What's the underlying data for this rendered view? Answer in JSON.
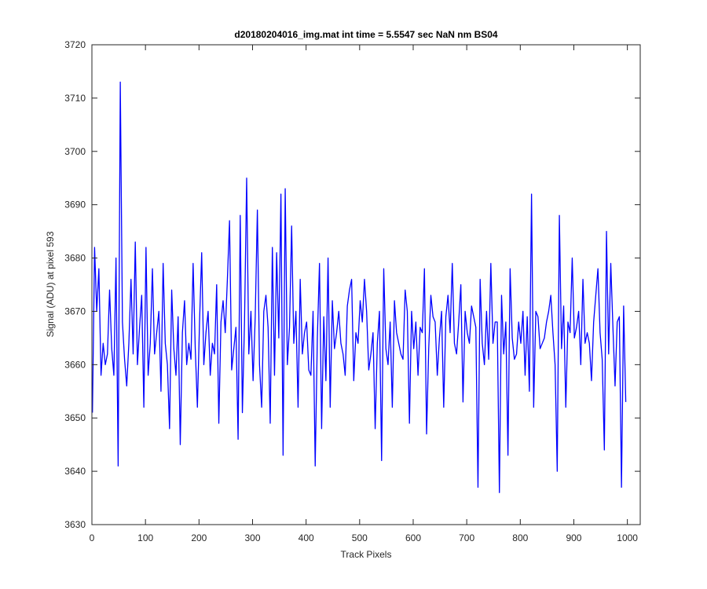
{
  "chart_data": {
    "type": "line",
    "title": "d20180204016_img.mat int time = 5.5547 sec  NaN nm BS04",
    "xlabel": "Track Pixels",
    "ylabel": "Signal (ADU) at pixel 593",
    "xlim": [
      0,
      1024
    ],
    "ylim": [
      3630,
      3720
    ],
    "xticks": [
      0,
      100,
      200,
      300,
      400,
      500,
      600,
      700,
      800,
      900,
      1000
    ],
    "yticks": [
      3630,
      3640,
      3650,
      3660,
      3670,
      3680,
      3690,
      3700,
      3710,
      3720
    ],
    "grid": false,
    "line_color": "#0000ff",
    "series": [
      {
        "x_start": 1,
        "x_step": 4,
        "values": [
          3651,
          3682,
          3670,
          3678,
          3658,
          3664,
          3660,
          3662,
          3674,
          3663,
          3658,
          3680,
          3641,
          3713,
          3668,
          3661,
          3656,
          3664,
          3676,
          3662,
          3683,
          3660,
          3667,
          3673,
          3652,
          3682,
          3658,
          3664,
          3678,
          3662,
          3666,
          3670,
          3655,
          3679,
          3664,
          3660,
          3648,
          3674,
          3663,
          3658,
          3669,
          3645,
          3666,
          3672,
          3660,
          3664,
          3661,
          3679,
          3663,
          3652,
          3668,
          3681,
          3660,
          3666,
          3670,
          3658,
          3664,
          3662,
          3675,
          3649,
          3668,
          3672,
          3666,
          3676,
          3687,
          3659,
          3663,
          3667,
          3646,
          3688,
          3651,
          3668,
          3695,
          3662,
          3670,
          3657,
          3669,
          3689,
          3660,
          3652,
          3670,
          3673,
          3667,
          3649,
          3682,
          3658,
          3681,
          3665,
          3692,
          3643,
          3693,
          3660,
          3667,
          3686,
          3664,
          3670,
          3652,
          3676,
          3662,
          3666,
          3668,
          3659,
          3658,
          3670,
          3641,
          3665,
          3679,
          3648,
          3669,
          3657,
          3680,
          3652,
          3672,
          3663,
          3666,
          3670,
          3664,
          3662,
          3658,
          3671,
          3674,
          3676,
          3657,
          3666,
          3664,
          3672,
          3668,
          3676,
          3670,
          3659,
          3662,
          3666,
          3648,
          3664,
          3670,
          3642,
          3678,
          3663,
          3660,
          3668,
          3652,
          3672,
          3666,
          3664,
          3662,
          3661,
          3674,
          3670,
          3649,
          3670,
          3663,
          3668,
          3658,
          3667,
          3666,
          3678,
          3647,
          3663,
          3673,
          3669,
          3668,
          3658,
          3665,
          3670,
          3652,
          3669,
          3673,
          3666,
          3679,
          3664,
          3662,
          3668,
          3675,
          3653,
          3670,
          3666,
          3664,
          3671,
          3669,
          3667,
          3637,
          3676,
          3664,
          3660,
          3670,
          3661,
          3679,
          3664,
          3668,
          3668,
          3636,
          3673,
          3662,
          3668,
          3643,
          3678,
          3665,
          3661,
          3662,
          3668,
          3664,
          3670,
          3658,
          3669,
          3655,
          3692,
          3652,
          3670,
          3669,
          3663,
          3664,
          3665,
          3668,
          3670,
          3673,
          3666,
          3660,
          3640,
          3688,
          3663,
          3671,
          3652,
          3668,
          3666,
          3680,
          3665,
          3667,
          3670,
          3660,
          3676,
          3664,
          3666,
          3664,
          3657,
          3668,
          3673,
          3678,
          3666,
          3661,
          3644,
          3685,
          3662,
          3679,
          3667,
          3656,
          3668,
          3669,
          3637,
          3671,
          3653
        ]
      }
    ]
  }
}
